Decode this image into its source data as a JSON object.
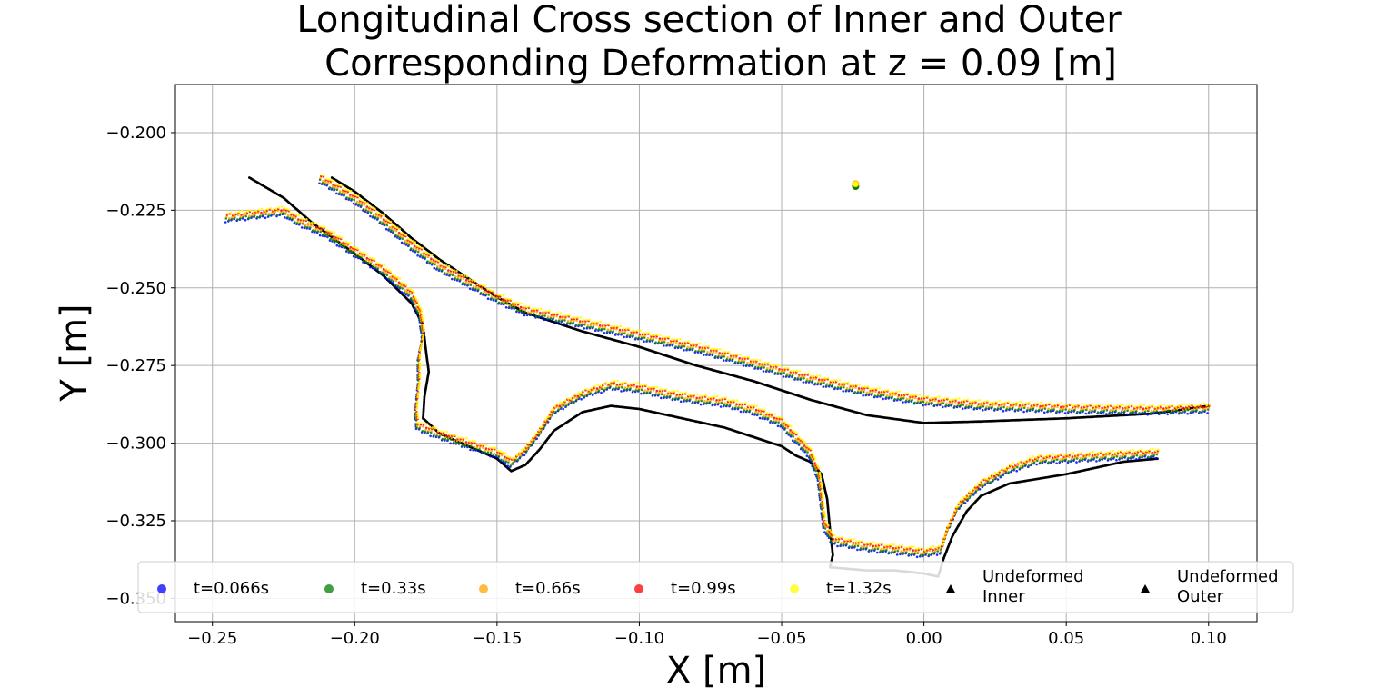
{
  "chart_data": {
    "type": "scatter",
    "title": "Longitudinal Cross section of Inner and Outer\n Corresponding Deformation at z = 0.09 [m]",
    "xlabel": "X [m]",
    "ylabel": "Y [m]",
    "xlim": [
      -0.263,
      0.117
    ],
    "ylim": [
      -0.3575,
      -0.1845
    ],
    "xticks": [
      -0.25,
      -0.2,
      -0.15,
      -0.1,
      -0.05,
      0.0,
      0.05,
      0.1
    ],
    "xtick_labels": [
      "−0.25",
      "−0.20",
      "−0.15",
      "−0.10",
      "−0.05",
      "0.00",
      "0.05",
      "0.10"
    ],
    "yticks": [
      -0.2,
      -0.225,
      -0.25,
      -0.275,
      -0.3,
      -0.325,
      -0.35
    ],
    "ytick_labels": [
      "−0.200",
      "−0.225",
      "−0.250",
      "−0.275",
      "−0.300",
      "−0.325",
      "−0.350"
    ],
    "grid": true,
    "legend_position": "lower-center, overlapping bottom of plot, 7 columns",
    "series": [
      {
        "name": "t=0.066s",
        "color": "#0000ff",
        "marker": "circle",
        "role": "deformed",
        "y_offset": -0.0015
      },
      {
        "name": "t=0.33s",
        "color": "#008000",
        "marker": "circle",
        "role": "deformed",
        "y_offset": -0.001
      },
      {
        "name": "t=0.66s",
        "color": "#ffa500",
        "marker": "circle",
        "role": "deformed",
        "y_offset": -0.0003
      },
      {
        "name": "t=0.99s",
        "color": "#ff0000",
        "marker": "circle",
        "role": "deformed",
        "y_offset": 0.0004
      },
      {
        "name": "t=1.32s",
        "color": "#ffff00",
        "marker": "circle",
        "role": "deformed",
        "y_offset": 0.0009
      },
      {
        "name": "Undeformed\nInner",
        "color": "#000000",
        "marker": "triangle",
        "role": "inner"
      },
      {
        "name": "Undeformed\nOuter",
        "color": "#000000",
        "marker": "triangle",
        "role": "outer"
      }
    ],
    "undeformed_inner_profile": [
      [
        -0.208,
        -0.2145
      ],
      [
        -0.2,
        -0.219
      ],
      [
        -0.19,
        -0.226
      ],
      [
        -0.18,
        -0.234
      ],
      [
        -0.17,
        -0.241
      ],
      [
        -0.16,
        -0.247
      ],
      [
        -0.15,
        -0.253
      ],
      [
        -0.14,
        -0.258
      ],
      [
        -0.12,
        -0.264
      ],
      [
        -0.1,
        -0.269
      ],
      [
        -0.08,
        -0.275
      ],
      [
        -0.06,
        -0.28
      ],
      [
        -0.04,
        -0.286
      ],
      [
        -0.02,
        -0.291
      ],
      [
        0.0,
        -0.2935
      ],
      [
        0.02,
        -0.293
      ],
      [
        0.05,
        -0.292
      ],
      [
        0.08,
        -0.2905
      ],
      [
        0.1,
        -0.288
      ]
    ],
    "undeformed_outer_profile": [
      [
        -0.237,
        -0.2145
      ],
      [
        -0.225,
        -0.221
      ],
      [
        -0.215,
        -0.229
      ],
      [
        -0.2,
        -0.239
      ],
      [
        -0.19,
        -0.246
      ],
      [
        -0.18,
        -0.255
      ],
      [
        -0.176,
        -0.262
      ],
      [
        -0.175,
        -0.27
      ],
      [
        -0.174,
        -0.277
      ],
      [
        -0.1755,
        -0.285
      ],
      [
        -0.176,
        -0.292
      ],
      [
        -0.17,
        -0.297
      ],
      [
        -0.16,
        -0.301
      ],
      [
        -0.15,
        -0.305
      ],
      [
        -0.145,
        -0.309
      ],
      [
        -0.14,
        -0.307
      ],
      [
        -0.135,
        -0.302
      ],
      [
        -0.13,
        -0.296
      ],
      [
        -0.12,
        -0.29
      ],
      [
        -0.11,
        -0.288
      ],
      [
        -0.1,
        -0.289
      ],
      [
        -0.09,
        -0.291
      ],
      [
        -0.08,
        -0.293
      ],
      [
        -0.07,
        -0.295
      ],
      [
        -0.06,
        -0.298
      ],
      [
        -0.05,
        -0.301
      ],
      [
        -0.045,
        -0.304
      ],
      [
        -0.04,
        -0.306
      ],
      [
        -0.036,
        -0.31
      ],
      [
        -0.034,
        -0.318
      ],
      [
        -0.033,
        -0.328
      ],
      [
        -0.032,
        -0.336
      ],
      [
        -0.033,
        -0.34
      ],
      [
        -0.02,
        -0.341
      ],
      [
        -0.01,
        -0.341
      ],
      [
        0.0,
        -0.342
      ],
      [
        0.005,
        -0.343
      ],
      [
        0.007,
        -0.337
      ],
      [
        0.01,
        -0.33
      ],
      [
        0.015,
        -0.322
      ],
      [
        0.02,
        -0.317
      ],
      [
        0.03,
        -0.313
      ],
      [
        0.05,
        -0.31
      ],
      [
        0.06,
        -0.308
      ],
      [
        0.07,
        -0.306
      ],
      [
        0.082,
        -0.305
      ]
    ],
    "deformed_inner_profile": [
      [
        -0.212,
        -0.2145
      ],
      [
        -0.2,
        -0.221
      ],
      [
        -0.19,
        -0.228
      ],
      [
        -0.18,
        -0.236
      ],
      [
        -0.17,
        -0.243
      ],
      [
        -0.16,
        -0.248
      ],
      [
        -0.15,
        -0.253
      ],
      [
        -0.14,
        -0.257
      ],
      [
        -0.12,
        -0.261
      ],
      [
        -0.1,
        -0.265
      ],
      [
        -0.08,
        -0.269
      ],
      [
        -0.06,
        -0.274
      ],
      [
        -0.04,
        -0.279
      ],
      [
        -0.02,
        -0.283
      ],
      [
        0.0,
        -0.286
      ],
      [
        0.02,
        -0.2875
      ],
      [
        0.05,
        -0.2885
      ],
      [
        0.08,
        -0.289
      ],
      [
        0.1,
        -0.2885
      ]
    ],
    "deformed_outer_profile": [
      [
        -0.245,
        -0.227
      ],
      [
        -0.235,
        -0.226
      ],
      [
        -0.225,
        -0.225
      ],
      [
        -0.22,
        -0.228
      ],
      [
        -0.21,
        -0.232
      ],
      [
        -0.2,
        -0.238
      ],
      [
        -0.19,
        -0.244
      ],
      [
        -0.18,
        -0.252
      ],
      [
        -0.177,
        -0.258
      ],
      [
        -0.176,
        -0.265
      ],
      [
        -0.1775,
        -0.272
      ],
      [
        -0.1775,
        -0.28
      ],
      [
        -0.1785,
        -0.289
      ],
      [
        -0.178,
        -0.294
      ],
      [
        -0.17,
        -0.297
      ],
      [
        -0.16,
        -0.3
      ],
      [
        -0.15,
        -0.303
      ],
      [
        -0.145,
        -0.306
      ],
      [
        -0.14,
        -0.302
      ],
      [
        -0.135,
        -0.296
      ],
      [
        -0.13,
        -0.289
      ],
      [
        -0.12,
        -0.284
      ],
      [
        -0.11,
        -0.281
      ],
      [
        -0.1,
        -0.282
      ],
      [
        -0.09,
        -0.284
      ],
      [
        -0.08,
        -0.2855
      ],
      [
        -0.07,
        -0.2865
      ],
      [
        -0.06,
        -0.289
      ],
      [
        -0.05,
        -0.293
      ],
      [
        -0.045,
        -0.298
      ],
      [
        -0.04,
        -0.303
      ],
      [
        -0.037,
        -0.31
      ],
      [
        -0.036,
        -0.318
      ],
      [
        -0.035,
        -0.326
      ],
      [
        -0.032,
        -0.331
      ],
      [
        -0.02,
        -0.333
      ],
      [
        -0.01,
        -0.334
      ],
      [
        0.0,
        -0.335
      ],
      [
        0.006,
        -0.334
      ],
      [
        0.008,
        -0.328
      ],
      [
        0.012,
        -0.32
      ],
      [
        0.02,
        -0.313
      ],
      [
        0.03,
        -0.308
      ],
      [
        0.04,
        -0.305
      ],
      [
        0.06,
        -0.304
      ],
      [
        0.082,
        -0.303
      ]
    ],
    "outlier_point": [
      -0.024,
      -0.2165
    ]
  }
}
